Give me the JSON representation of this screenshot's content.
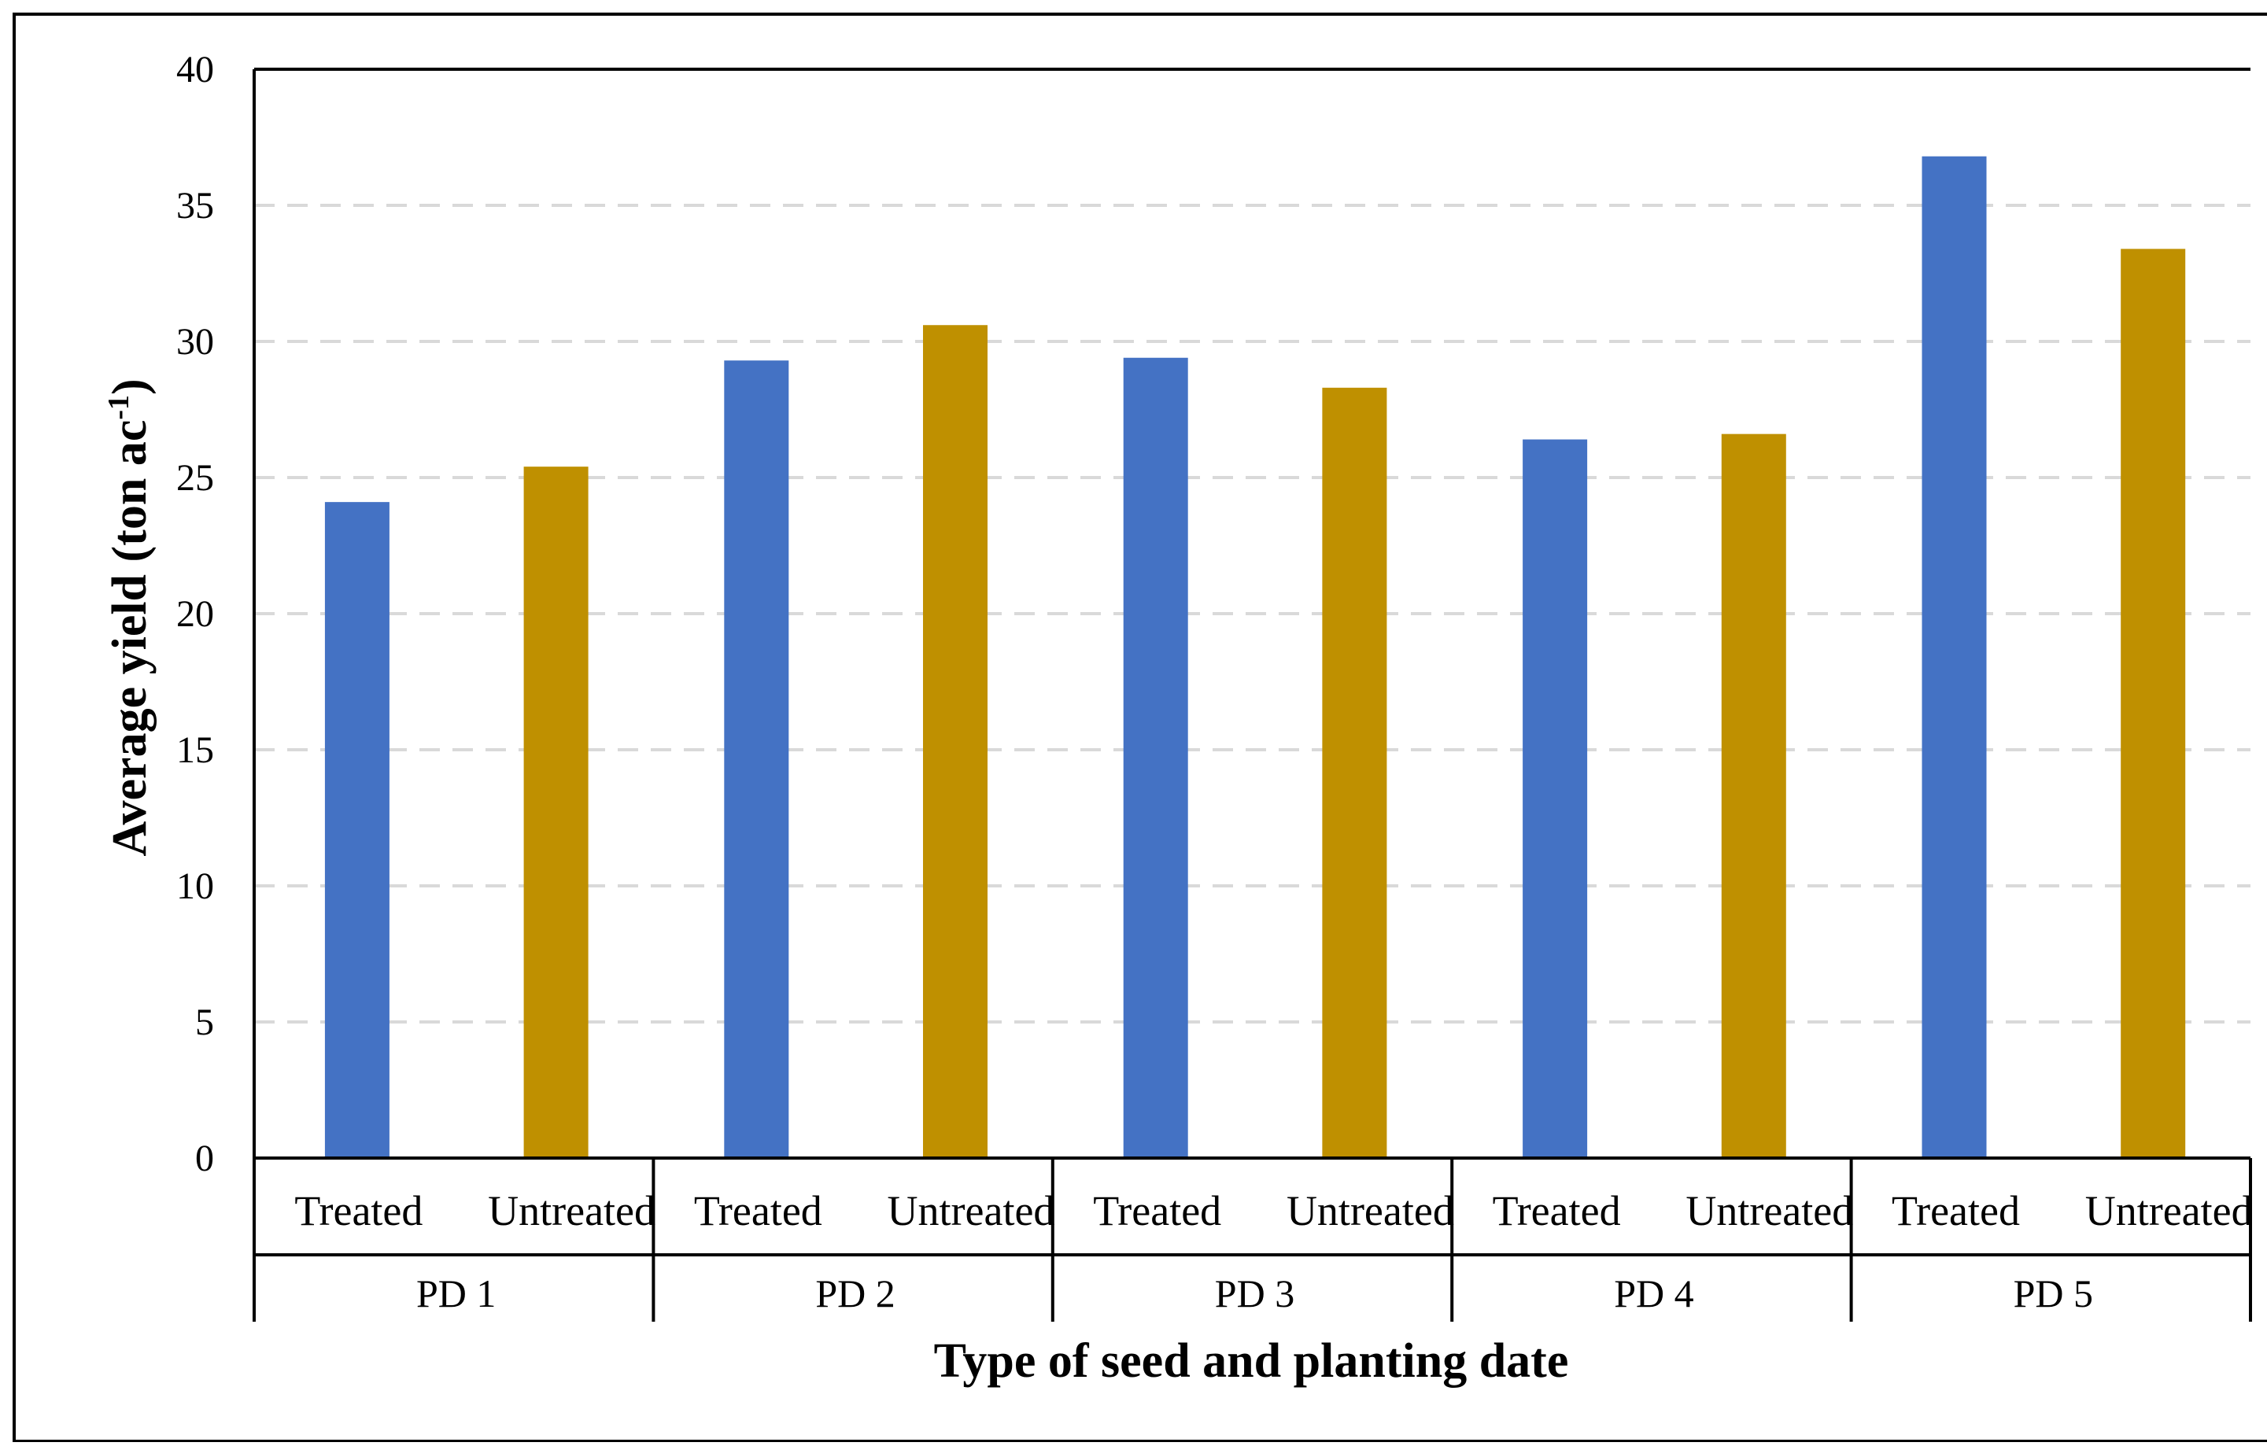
{
  "chart_data": {
    "type": "bar",
    "xlabel": "Type of seed and planting date",
    "ylabel": {
      "prefix": "Average yield  (ton ac",
      "superscript": "-1",
      "suffix": ")"
    },
    "ylim": [
      0,
      40
    ],
    "ytick_step": 5,
    "yticks": [
      "0",
      "5",
      "10",
      "15",
      "20",
      "25",
      "30",
      "35",
      "40"
    ],
    "grid": "horizontal dashed",
    "legend": "none",
    "groups": [
      {
        "label": "PD 1",
        "bars": [
          {
            "category": "Treated",
            "value": 24.1,
            "color": "#4472C4"
          },
          {
            "category": "Untreated",
            "value": 25.4,
            "color": "#BF9000"
          }
        ]
      },
      {
        "label": "PD 2",
        "bars": [
          {
            "category": "Treated",
            "value": 29.3,
            "color": "#4472C4"
          },
          {
            "category": "Untreated",
            "value": 30.6,
            "color": "#BF9000"
          }
        ]
      },
      {
        "label": "PD 3",
        "bars": [
          {
            "category": "Treated",
            "value": 29.4,
            "color": "#4472C4"
          },
          {
            "category": "Untreated",
            "value": 28.3,
            "color": "#BF9000"
          }
        ]
      },
      {
        "label": "PD 4",
        "bars": [
          {
            "category": "Treated",
            "value": 26.4,
            "color": "#4472C4"
          },
          {
            "category": "Untreated",
            "value": 26.6,
            "color": "#BF9000"
          }
        ]
      },
      {
        "label": "PD 5",
        "bars": [
          {
            "category": "Treated",
            "value": 36.8,
            "color": "#4472C4"
          },
          {
            "category": "Untreated",
            "value": 33.4,
            "color": "#BF9000"
          }
        ]
      }
    ]
  }
}
